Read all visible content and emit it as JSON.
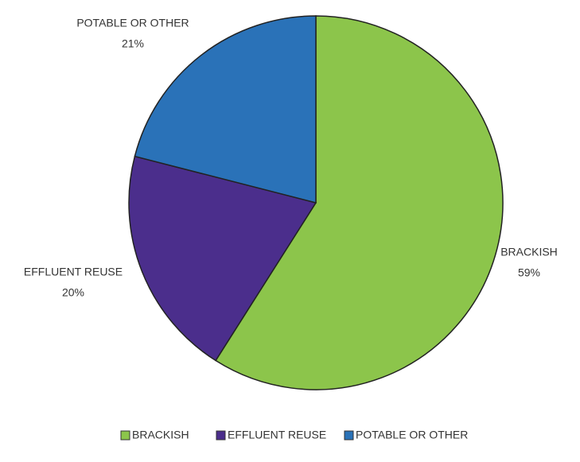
{
  "chart_data": {
    "type": "pie",
    "categories": [
      "BRACKISH",
      "EFFLUENT REUSE",
      "POTABLE OR OTHER"
    ],
    "values": [
      59,
      20,
      21
    ],
    "value_labels": [
      "59%",
      "20%",
      "21%"
    ],
    "colors": [
      "#8cc54b",
      "#4b2e8c",
      "#2a72b8"
    ],
    "legend": "bottom"
  }
}
